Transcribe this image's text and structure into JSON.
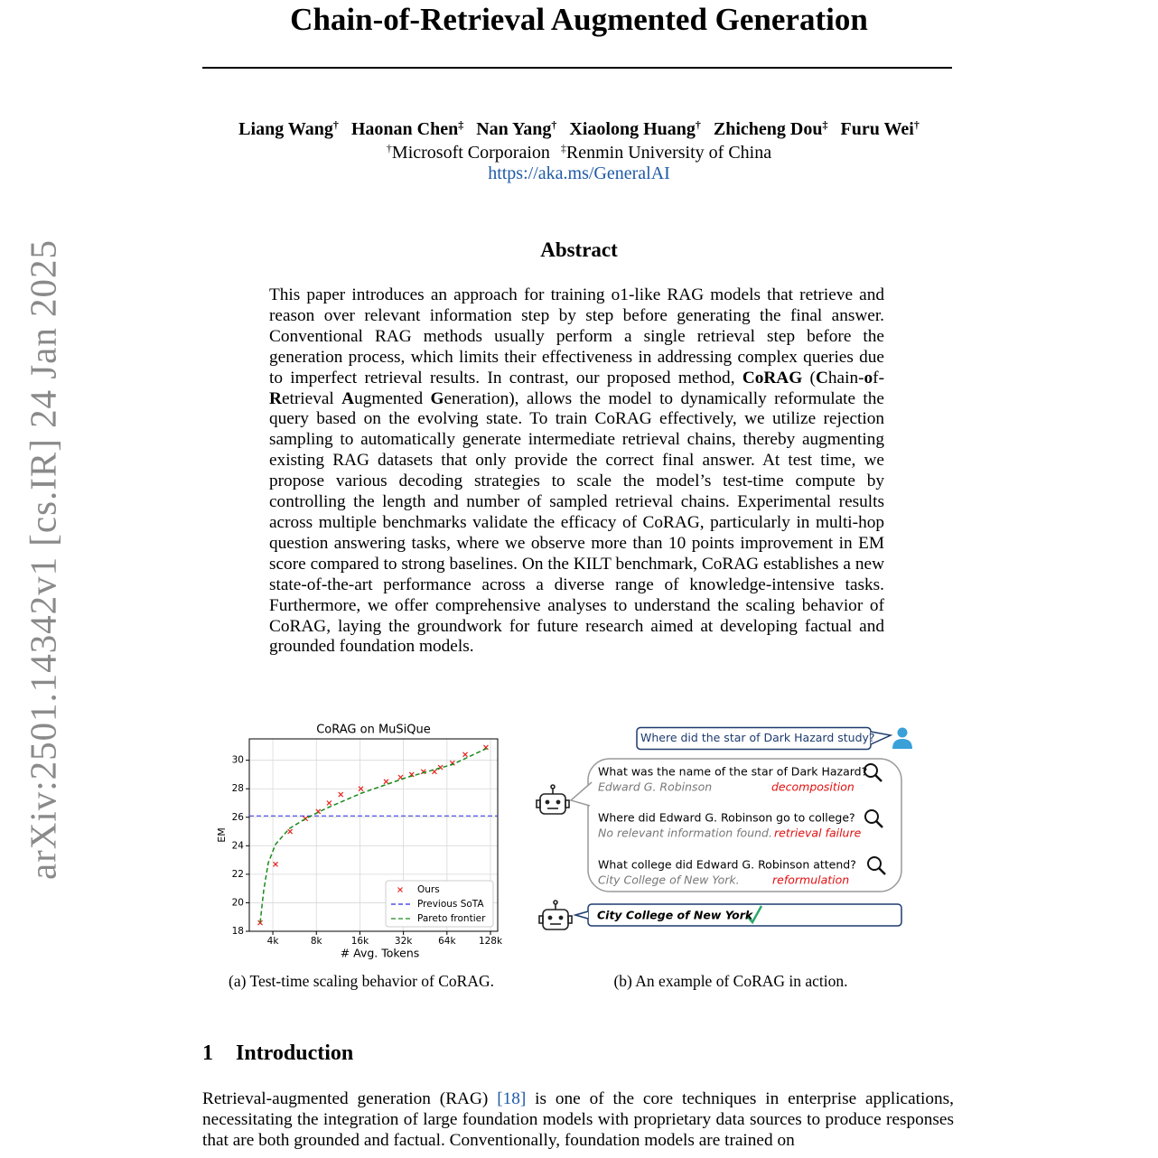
{
  "header": {
    "arxiv": "arXiv:2501.14342v1 [cs.IR] 24 Jan 2025",
    "title": "Chain-of-Retrieval Augmented Generation",
    "authors": [
      {
        "name": "Liang Wang",
        "mark": "†"
      },
      {
        "name": "Haonan Chen",
        "mark": "‡"
      },
      {
        "name": "Nan Yang",
        "mark": "†"
      },
      {
        "name": "Xiaolong Huang",
        "mark": "†"
      },
      {
        "name": "Zhicheng Dou",
        "mark": "‡"
      },
      {
        "name": "Furu Wei",
        "mark": "†"
      }
    ],
    "affiliations": [
      {
        "mark": "†",
        "name": "Microsoft Corporaion"
      },
      {
        "mark": "‡",
        "name": "Renmin University of China"
      }
    ],
    "url": "https://aka.ms/GeneralAI"
  },
  "abstract": {
    "heading": "Abstract",
    "segments": [
      {
        "text": "This paper introduces an approach for training o1-like RAG models that retrieve and reason over relevant information step by step before generating the final answer. Conventional RAG methods usually perform a single retrieval step before the generation process, which limits their effectiveness in addressing complex queries due to imperfect retrieval results. In contrast, our proposed method, "
      },
      {
        "text": "CoRAG",
        "bold": true
      },
      {
        "text": " ("
      },
      {
        "text": "C",
        "bold": true
      },
      {
        "text": "hain-"
      },
      {
        "text": "o",
        "bold": true
      },
      {
        "text": "f-"
      },
      {
        "text": "R",
        "bold": true
      },
      {
        "text": "etrieval "
      },
      {
        "text": "A",
        "bold": true
      },
      {
        "text": "ugmented "
      },
      {
        "text": "G",
        "bold": true
      },
      {
        "text": "eneration), allows the model to dynamically reformulate the query based on the evolving state. To train CoRAG effectively, we utilize rejection sampling to automatically generate intermediate retrieval chains, thereby augmenting existing RAG datasets that only provide the correct final answer. At test time, we propose various decoding strategies to scale the model’s test-time compute by controlling the length and number of sampled retrieval chains. Experimental results across multiple benchmarks validate the efficacy of CoRAG, particularly in multi-hop question answering tasks, where we observe more than 10 points improvement in EM score compared to strong baselines. On the KILT benchmark, CoRAG establishes a new state-of-the-art performance across a diverse range of knowledge-intensive tasks. Furthermore, we offer comprehensive analyses to understand the scaling behavior of CoRAG, laying the groundwork for future research aimed at developing factual and grounded foundation models."
      }
    ]
  },
  "chart_data": {
    "type": "scatter",
    "title": "CoRAG on MuSiQue",
    "x_label": "# Avg. Tokens",
    "y_label": "EM",
    "xscale": "log",
    "xlim": [
      2750,
      143600
    ],
    "ylim": [
      18,
      31.5
    ],
    "xticks": [
      {
        "value": 4000,
        "label": "4k"
      },
      {
        "value": 8000,
        "label": "8k"
      },
      {
        "value": 16000,
        "label": "16k"
      },
      {
        "value": 32000,
        "label": "32k"
      },
      {
        "value": 64000,
        "label": "64k"
      },
      {
        "value": 128000,
        "label": "128k"
      }
    ],
    "yticks": [
      18,
      20,
      22,
      24,
      26,
      28,
      30
    ],
    "grid": true,
    "legend": "lower right",
    "series": [
      {
        "name": "Ours",
        "color": "#e8251f",
        "marker": "x",
        "x": [
          3270,
          4175,
          5263,
          6727,
          8240,
          9800,
          11800,
          16240,
          24300,
          30600,
          36500,
          44000,
          52400,
          57700,
          69800,
          85600,
          119000
        ],
        "values": [
          18.6,
          22.7,
          25.0,
          25.9,
          26.4,
          27.0,
          27.6,
          28.0,
          28.5,
          28.8,
          29.0,
          29.2,
          29.2,
          29.5,
          29.8,
          30.4,
          30.9
        ]
      },
      {
        "name": "Previous SoTA",
        "color": "#2a2ae8",
        "linestyle": "dashed",
        "values": [
          26.1
        ]
      },
      {
        "name": "Pareto frontier",
        "color": "#1a8a1a",
        "linestyle": "dashed",
        "x": [
          3270,
          3460,
          3720,
          4175,
          5190,
          6727,
          9240,
          16470,
          33900,
          69800,
          124400
        ],
        "values": [
          18.6,
          20.9,
          22.8,
          24.1,
          25.2,
          25.9,
          26.6,
          27.7,
          28.8,
          29.7,
          30.9
        ]
      }
    ]
  },
  "diagram": {
    "question": "Where did the star of Dark Hazard study?",
    "steps": [
      {
        "query": "What was the name of the star of Dark Hazard?",
        "answer": "Edward G. Robinson",
        "tag": "decomposition"
      },
      {
        "query": "Where did Edward G. Robinson go to college?",
        "answer": "No relevant information found.",
        "tag": "retrieval failure"
      },
      {
        "query": "What college did Edward G. Robinson attend?",
        "answer": "City College of New York.",
        "tag": "reformulation"
      }
    ],
    "final_answer": "City College of New York"
  },
  "captions": [
    "(a) Test-time scaling behavior of CoRAG.",
    "(b) An example of CoRAG in action."
  ],
  "section": {
    "number": "1",
    "title": "Introduction",
    "segments": [
      {
        "text": "Retrieval-augmented generation (RAG) "
      },
      {
        "text": "[18]",
        "cite": true
      },
      {
        "text": " is one of the core techniques in enterprise applications, necessitating the integration of large foundation models with proprietary data sources to produce responses that are both grounded and factual. Conventionally, foundation models are trained on"
      }
    ]
  }
}
